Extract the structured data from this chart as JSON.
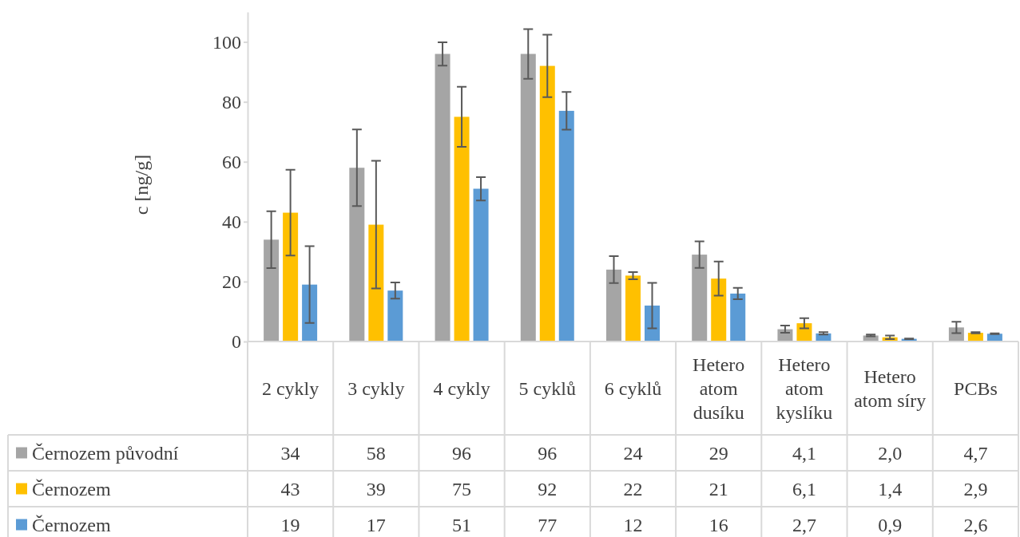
{
  "chart_data": {
    "type": "bar",
    "ylabel": "c [ng/g]",
    "categories": [
      "2 cykly",
      "3 cykly",
      "4 cykly",
      "5 cyklů",
      "6 cyklů",
      "Hetero atom dusíku",
      "Hetero atom kyslíku",
      "Hetero atom síry",
      "PCBs"
    ],
    "series": [
      {
        "name": "Černozem původní",
        "color": "#a5a5a5",
        "values": [
          34,
          58,
          96,
          96,
          24,
          29,
          4.1,
          2.0,
          4.7
        ],
        "errors": [
          9.5,
          12.8,
          3.9,
          8.3,
          4.5,
          4.4,
          1.2,
          0.3,
          1.9
        ],
        "value_labels": [
          "34",
          "58",
          "96",
          "96",
          "24",
          "29",
          "4,1",
          "2,0",
          "4,7"
        ]
      },
      {
        "name": "Černozem",
        "color": "#ffc000",
        "values": [
          43,
          39,
          75,
          92,
          22,
          21,
          6.1,
          1.4,
          2.9
        ],
        "errors": [
          14.3,
          21.3,
          10,
          10.4,
          1.2,
          5.7,
          1.7,
          0.6,
          0.2
        ],
        "value_labels": [
          "43",
          "39",
          "75",
          "92",
          "22",
          "21",
          "6,1",
          "1,4",
          "2,9"
        ]
      },
      {
        "name": "Černozem",
        "color": "#5b9bd5",
        "values": [
          19,
          17,
          51,
          77,
          12,
          16,
          2.7,
          0.9,
          2.6
        ],
        "errors": [
          12.8,
          2.7,
          3.9,
          6.3,
          7.6,
          1.9,
          0.4,
          0.1,
          0.15
        ],
        "value_labels": [
          "19",
          "17",
          "51",
          "77",
          "12",
          "16",
          "2,7",
          "0,9",
          "2,6"
        ]
      }
    ],
    "ylim": [
      0,
      110
    ],
    "yticks": [
      0,
      20,
      40,
      60,
      80,
      100
    ],
    "grid": false,
    "legend": "bottom left"
  }
}
